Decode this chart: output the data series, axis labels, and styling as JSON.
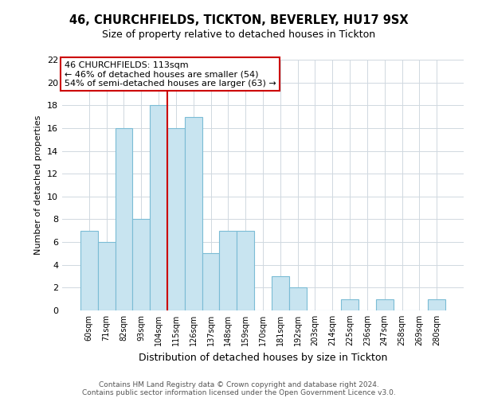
{
  "title1": "46, CHURCHFIELDS, TICKTON, BEVERLEY, HU17 9SX",
  "title2": "Size of property relative to detached houses in Tickton",
  "xlabel": "Distribution of detached houses by size in Tickton",
  "ylabel": "Number of detached properties",
  "bar_labels": [
    "60sqm",
    "71sqm",
    "82sqm",
    "93sqm",
    "104sqm",
    "115sqm",
    "126sqm",
    "137sqm",
    "148sqm",
    "159sqm",
    "170sqm",
    "181sqm",
    "192sqm",
    "203sqm",
    "214sqm",
    "225sqm",
    "236sqm",
    "247sqm",
    "258sqm",
    "269sqm",
    "280sqm"
  ],
  "bar_values": [
    7,
    6,
    16,
    8,
    18,
    16,
    17,
    5,
    7,
    7,
    0,
    3,
    2,
    0,
    0,
    1,
    0,
    1,
    0,
    0,
    1
  ],
  "bar_color": "#c8e4f0",
  "bar_edge_color": "#7bbcd5",
  "vline_color": "#cc0000",
  "ylim": [
    0,
    22
  ],
  "yticks": [
    0,
    2,
    4,
    6,
    8,
    10,
    12,
    14,
    16,
    18,
    20,
    22
  ],
  "annotation_title": "46 CHURCHFIELDS: 113sqm",
  "annotation_line1": "← 46% of detached houses are smaller (54)",
  "annotation_line2": "54% of semi-detached houses are larger (63) →",
  "footer1": "Contains HM Land Registry data © Crown copyright and database right 2024.",
  "footer2": "Contains public sector information licensed under the Open Government Licence v3.0.",
  "bg_color": "#ffffff",
  "grid_color": "#d0d8e0"
}
